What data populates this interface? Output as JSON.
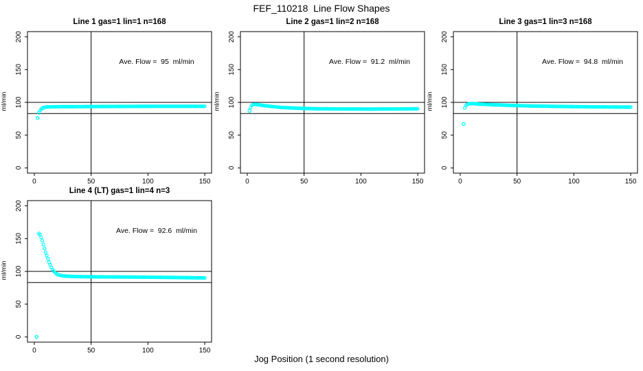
{
  "figure": {
    "title": "FEF_110218  Line Flow Shapes",
    "xlabel": "Jog Position (1 second resolution)"
  },
  "chart_data": [
    {
      "type": "scatter",
      "title": "Line 1 gas=1 lin=1 n=168",
      "annotation": "Ave. Flow =  95  ml/min",
      "avg_flow_ml_min": 95,
      "ylabel": "ml/min",
      "xlim": [
        0,
        150
      ],
      "ylim": [
        0,
        200
      ],
      "x_ticks": [
        0,
        50,
        100,
        150
      ],
      "y_ticks": [
        0,
        50,
        100,
        150,
        200
      ],
      "ref_h": [
        100,
        83
      ],
      "ref_v": [
        50
      ],
      "point_color": "#00ffff",
      "outliers": [
        [
          3,
          76
        ]
      ],
      "keypoints": [
        [
          4,
          84
        ],
        [
          5,
          87.5
        ],
        [
          6,
          89.5
        ],
        [
          7,
          91
        ],
        [
          8,
          92
        ],
        [
          10,
          92.8
        ],
        [
          14,
          93.2
        ],
        [
          20,
          93.4
        ],
        [
          40,
          93.5
        ],
        [
          70,
          93.8
        ],
        [
          100,
          94
        ],
        [
          130,
          94
        ],
        [
          150,
          94
        ]
      ]
    },
    {
      "type": "scatter",
      "title": "Line 2 gas=1 lin=2 n=168",
      "annotation": "Ave. Flow =  91.2  ml/min",
      "avg_flow_ml_min": 91.2,
      "ylabel": "ml/min",
      "xlim": [
        0,
        150
      ],
      "ylim": [
        0,
        200
      ],
      "x_ticks": [
        0,
        50,
        100,
        150
      ],
      "y_ticks": [
        0,
        50,
        100,
        150,
        200
      ],
      "ref_h": [
        100,
        83
      ],
      "ref_v": [
        50
      ],
      "point_color": "#00ffff",
      "outliers": [
        [
          2,
          87
        ]
      ],
      "keypoints": [
        [
          3,
          92
        ],
        [
          4,
          95.5
        ],
        [
          5,
          96.8
        ],
        [
          7,
          97
        ],
        [
          10,
          96.3
        ],
        [
          15,
          95
        ],
        [
          20,
          94
        ],
        [
          30,
          92.3
        ],
        [
          45,
          91
        ],
        [
          60,
          90.3
        ],
        [
          80,
          90
        ],
        [
          110,
          89.8
        ],
        [
          135,
          90
        ],
        [
          150,
          90.2
        ]
      ]
    },
    {
      "type": "scatter",
      "title": "Line 3 gas=1 lin=3 n=168",
      "annotation": "Ave. Flow =  94.8  ml/min",
      "avg_flow_ml_min": 94.8,
      "ylabel": "ml/min",
      "xlim": [
        0,
        150
      ],
      "ylim": [
        0,
        200
      ],
      "x_ticks": [
        0,
        50,
        100,
        150
      ],
      "y_ticks": [
        0,
        50,
        100,
        150,
        200
      ],
      "ref_h": [
        100,
        83
      ],
      "ref_v": [
        50
      ],
      "point_color": "#00ffff",
      "outliers": [
        [
          3,
          67
        ]
      ],
      "keypoints": [
        [
          4,
          91.5
        ],
        [
          5,
          95
        ],
        [
          6,
          97
        ],
        [
          8,
          98
        ],
        [
          12,
          98
        ],
        [
          18,
          97.3
        ],
        [
          30,
          96.3
        ],
        [
          45,
          95.3
        ],
        [
          60,
          94.6
        ],
        [
          80,
          94
        ],
        [
          105,
          93.4
        ],
        [
          130,
          93
        ],
        [
          150,
          92.8
        ]
      ]
    },
    {
      "type": "scatter",
      "title": "Line 4 (LT) gas=1 lin=4 n=3",
      "annotation": "Ave. Flow =  92.6  ml/min",
      "avg_flow_ml_min": 92.6,
      "ylabel": "ml/min",
      "xlim": [
        0,
        150
      ],
      "ylim": [
        0,
        200
      ],
      "x_ticks": [
        0,
        50,
        100,
        150
      ],
      "y_ticks": [
        0,
        50,
        100,
        150,
        200
      ],
      "ref_h": [
        100,
        83
      ],
      "ref_v": [
        50
      ],
      "point_color": "#00ffff",
      "outliers": [
        [
          2,
          0
        ]
      ],
      "keypoints": [
        [
          4,
          158
        ],
        [
          5,
          156
        ],
        [
          6,
          152
        ],
        [
          7,
          147
        ],
        [
          8,
          141
        ],
        [
          9,
          135
        ],
        [
          10,
          129
        ],
        [
          11,
          124
        ],
        [
          12,
          119
        ],
        [
          13,
          114
        ],
        [
          14,
          110
        ],
        [
          15,
          106
        ],
        [
          16,
          103
        ],
        [
          17,
          100.5
        ],
        [
          18,
          98.5
        ],
        [
          19,
          97
        ],
        [
          20,
          95.8
        ],
        [
          22,
          94.3
        ],
        [
          25,
          93.2
        ],
        [
          30,
          92.5
        ],
        [
          40,
          92
        ],
        [
          60,
          91.6
        ],
        [
          90,
          91.3
        ],
        [
          120,
          90.8
        ],
        [
          150,
          90
        ]
      ]
    }
  ]
}
